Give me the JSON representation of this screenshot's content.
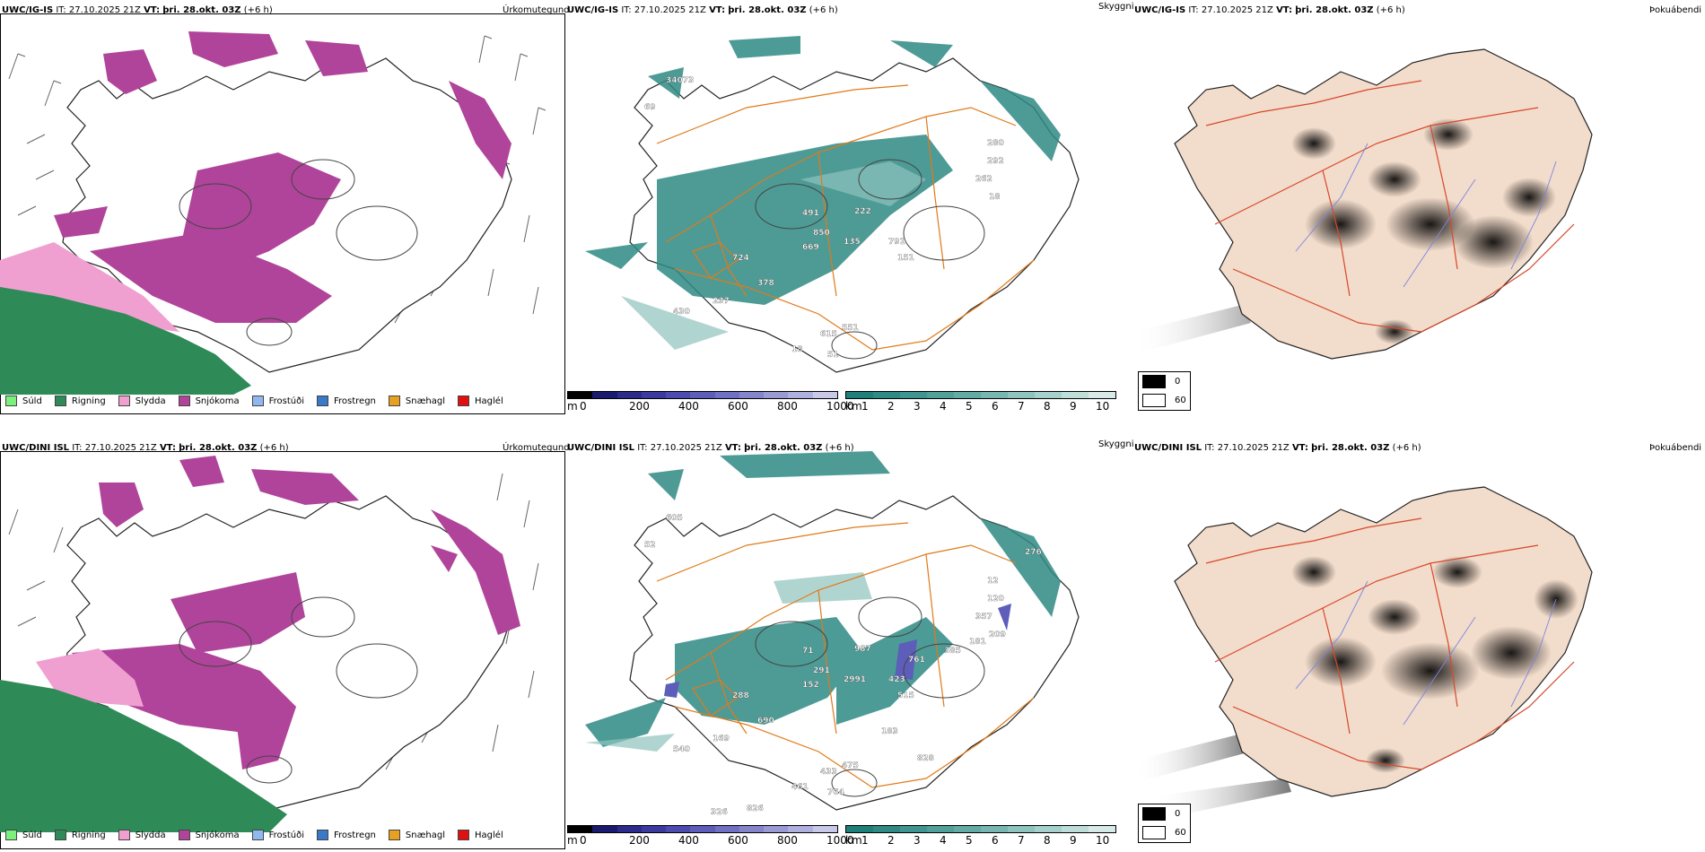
{
  "rows": [
    {
      "model": "UWC/IG-IS",
      "it_label": "IT:",
      "it_value": "27.10.2025 21Z",
      "vt_label": "VT:",
      "vt_value": "þri. 28.okt. 03Z",
      "lead": "(+6 h)",
      "labels_visibility": [
        "34073",
        "69",
        "491",
        "222",
        "850",
        "135",
        "669",
        "724",
        "791",
        "151",
        "378",
        "237",
        "430",
        "551",
        "615",
        "18",
        "51",
        "280",
        "292",
        "262",
        "18"
      ],
      "labels_precip": []
    },
    {
      "model": "UWC/DINI ISL",
      "it_label": "IT:",
      "it_value": "27.10.2025 21Z",
      "vt_label": "VT:",
      "vt_value": "þri. 28.okt. 03Z",
      "lead": "(+6 h)",
      "labels_visibility": [
        "605",
        "52",
        "71",
        "987",
        "291",
        "2991",
        "152",
        "288",
        "423",
        "515",
        "690",
        "169",
        "540",
        "475",
        "433",
        "461",
        "764",
        "12",
        "120",
        "357",
        "209",
        "181",
        "326",
        "826",
        "276",
        "761",
        "385",
        "183",
        "828"
      ],
      "labels_precip": []
    }
  ],
  "panel_titles": {
    "precip": "Úrkomutegund",
    "visibility": "Skyggni",
    "fog": "Þokuábendi"
  },
  "precip_legend": [
    {
      "label": "Súld",
      "color": "#7cf07c"
    },
    {
      "label": "Rigning",
      "color": "#2e8b57"
    },
    {
      "label": "Slydda",
      "color": "#f0a0d0"
    },
    {
      "label": "Snjókoma",
      "color": "#b0449a"
    },
    {
      "label": "Frostúði",
      "color": "#90b8ee"
    },
    {
      "label": "Frostregn",
      "color": "#3a78c8"
    },
    {
      "label": "Snæhagl",
      "color": "#e8a020"
    },
    {
      "label": "Haglél",
      "color": "#e01010"
    }
  ],
  "cloud_base_bar": {
    "unit": "m",
    "ticks": [
      "0",
      "200",
      "400",
      "600",
      "800",
      "1000"
    ],
    "colors": [
      "#000000",
      "#1a1a6e",
      "#2b2b8c",
      "#3a3aa0",
      "#4b4bb0",
      "#5d5dba",
      "#7070c4",
      "#8585cc",
      "#9a9ad4",
      "#b0b0de",
      "#c8c8e8"
    ]
  },
  "visibility_bar": {
    "unit": "km",
    "ticks": [
      "1",
      "2",
      "3",
      "4",
      "5",
      "6",
      "7",
      "8",
      "9",
      "10"
    ],
    "colors": [
      "#1f7f7a",
      "#2f8a84",
      "#3f958f",
      "#51a09a",
      "#63aba5",
      "#78b7b1",
      "#8ec3be",
      "#a6d0cb",
      "#bedcd8",
      "#d8eae8"
    ]
  },
  "fog_legend": [
    {
      "label": "0",
      "color": "#000000"
    },
    {
      "label": "60",
      "color": "#ffffff"
    }
  ],
  "colors": {
    "snow": "#b0449a",
    "rain": "#2e8b57",
    "sleet": "#f0a0d0",
    "teal": "#2f8a84",
    "roads": "#e07a1a",
    "land_fog": "#f2dccb",
    "fog_roads": "#d8482a"
  }
}
